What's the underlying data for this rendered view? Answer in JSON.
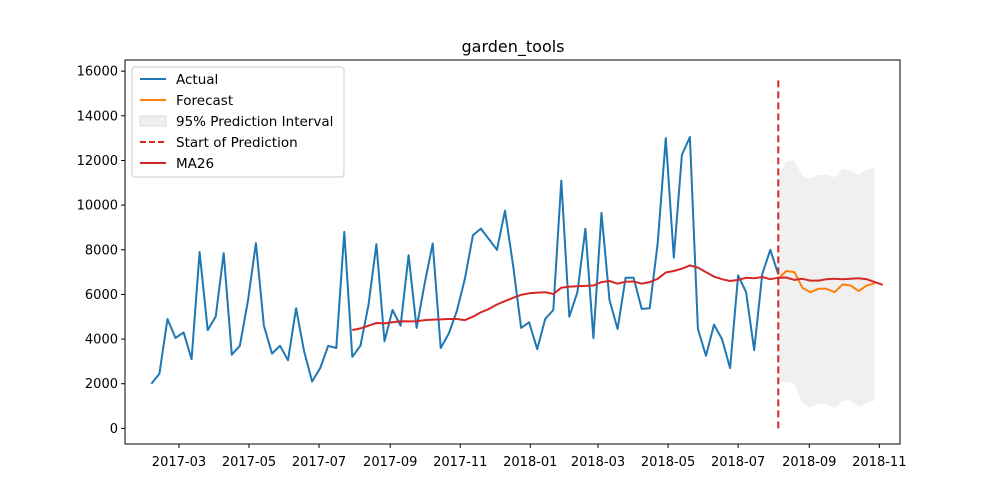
{
  "chart_data": {
    "type": "line",
    "title": "garden_tools",
    "xlabel": "",
    "ylabel": "",
    "x_range": [
      "2017-01-13",
      "2018-11-19"
    ],
    "ylim": [
      -700,
      16500
    ],
    "grid": false,
    "legend_position": "top-left",
    "y_ticks": [
      0,
      2000,
      4000,
      6000,
      8000,
      10000,
      12000,
      14000,
      16000
    ],
    "y_tick_labels": [
      "0",
      "2000",
      "4000",
      "6000",
      "8000",
      "10000",
      "12000",
      "14000",
      "16000"
    ],
    "x_ticks": [
      "2017-03-01",
      "2017-05-01",
      "2017-07-01",
      "2017-09-01",
      "2017-11-01",
      "2018-01-01",
      "2018-03-01",
      "2018-05-01",
      "2018-07-01",
      "2018-09-01",
      "2018-11-01"
    ],
    "x_tick_labels": [
      "2017-03",
      "2017-05",
      "2017-07",
      "2017-09",
      "2017-11",
      "2018-01",
      "2018-03",
      "2018-05",
      "2018-07",
      "2018-09",
      "2018-11"
    ],
    "series": [
      {
        "name": "Actual",
        "kind": "line",
        "color": "#1f77b4",
        "points": [
          [
            "2017-02-05",
            2000
          ],
          [
            "2017-02-12",
            2450
          ],
          [
            "2017-02-19",
            4900
          ],
          [
            "2017-02-26",
            4050
          ],
          [
            "2017-03-05",
            4300
          ],
          [
            "2017-03-12",
            3100
          ],
          [
            "2017-03-19",
            7900
          ],
          [
            "2017-03-26",
            4400
          ],
          [
            "2017-04-02",
            5000
          ],
          [
            "2017-04-09",
            7850
          ],
          [
            "2017-04-16",
            3300
          ],
          [
            "2017-04-23",
            3700
          ],
          [
            "2017-04-30",
            5700
          ],
          [
            "2017-05-07",
            8300
          ],
          [
            "2017-05-14",
            4600
          ],
          [
            "2017-05-21",
            3350
          ],
          [
            "2017-05-28",
            3700
          ],
          [
            "2017-06-04",
            3050
          ],
          [
            "2017-06-11",
            5380
          ],
          [
            "2017-06-18",
            3450
          ],
          [
            "2017-06-25",
            2100
          ],
          [
            "2017-07-02",
            2700
          ],
          [
            "2017-07-09",
            3700
          ],
          [
            "2017-07-16",
            3600
          ],
          [
            "2017-07-23",
            8800
          ],
          [
            "2017-07-30",
            3200
          ],
          [
            "2017-08-06",
            3700
          ],
          [
            "2017-08-13",
            5500
          ],
          [
            "2017-08-20",
            8250
          ],
          [
            "2017-08-27",
            3900
          ],
          [
            "2017-09-03",
            5300
          ],
          [
            "2017-09-10",
            4600
          ],
          [
            "2017-09-17",
            7750
          ],
          [
            "2017-09-24",
            4500
          ],
          [
            "2017-10-01",
            6500
          ],
          [
            "2017-10-08",
            8280
          ],
          [
            "2017-10-15",
            3600
          ],
          [
            "2017-10-22",
            4250
          ],
          [
            "2017-10-29",
            5250
          ],
          [
            "2017-11-05",
            6700
          ],
          [
            "2017-11-12",
            8650
          ],
          [
            "2017-11-19",
            8950
          ],
          [
            "2017-12-03",
            8000
          ],
          [
            "2017-12-10",
            9750
          ],
          [
            "2017-12-17",
            7300
          ],
          [
            "2017-12-24",
            4500
          ],
          [
            "2017-12-31",
            4750
          ],
          [
            "2018-01-07",
            3550
          ],
          [
            "2018-01-14",
            4900
          ],
          [
            "2018-01-21",
            5300
          ],
          [
            "2018-01-28",
            11100
          ],
          [
            "2018-02-04",
            5000
          ],
          [
            "2018-02-11",
            6100
          ],
          [
            "2018-02-18",
            8950
          ],
          [
            "2018-02-25",
            4050
          ],
          [
            "2018-03-04",
            9650
          ],
          [
            "2018-03-11",
            5750
          ],
          [
            "2018-03-18",
            4450
          ],
          [
            "2018-03-25",
            6750
          ],
          [
            "2018-04-01",
            6750
          ],
          [
            "2018-04-08",
            5350
          ],
          [
            "2018-04-15",
            5380
          ],
          [
            "2018-04-22",
            8300
          ],
          [
            "2018-04-29",
            13000
          ],
          [
            "2018-05-06",
            7650
          ],
          [
            "2018-05-13",
            12250
          ],
          [
            "2018-05-20",
            13050
          ],
          [
            "2018-05-27",
            4450
          ],
          [
            "2018-06-03",
            3250
          ],
          [
            "2018-06-10",
            4650
          ],
          [
            "2018-06-17",
            4000
          ],
          [
            "2018-06-24",
            2700
          ],
          [
            "2018-07-01",
            6850
          ],
          [
            "2018-07-08",
            6100
          ],
          [
            "2018-07-15",
            3500
          ],
          [
            "2018-07-22",
            6900
          ],
          [
            "2018-07-29",
            8000
          ],
          [
            "2018-08-05",
            6900
          ]
        ]
      },
      {
        "name": "Forecast",
        "kind": "line",
        "color": "#ff7f0e",
        "points": [
          [
            "2018-08-05",
            6700
          ],
          [
            "2018-08-12",
            7050
          ],
          [
            "2018-08-19",
            7000
          ],
          [
            "2018-08-26",
            6300
          ],
          [
            "2018-09-02",
            6100
          ],
          [
            "2018-09-09",
            6250
          ],
          [
            "2018-09-16",
            6250
          ],
          [
            "2018-09-23",
            6100
          ],
          [
            "2018-09-30",
            6450
          ],
          [
            "2018-10-07",
            6400
          ],
          [
            "2018-10-14",
            6150
          ],
          [
            "2018-10-21",
            6400
          ],
          [
            "2018-10-28",
            6500
          ]
        ]
      },
      {
        "name": "95% Prediction Interval",
        "kind": "band",
        "color": "#f0f0f0",
        "points": [
          [
            "2018-08-05",
            2100,
            11300
          ],
          [
            "2018-08-12",
            2050,
            11950
          ],
          [
            "2018-08-19",
            2000,
            12000
          ],
          [
            "2018-08-26",
            1150,
            11300
          ],
          [
            "2018-09-02",
            950,
            11200
          ],
          [
            "2018-09-09",
            1100,
            11350
          ],
          [
            "2018-09-16",
            1100,
            11350
          ],
          [
            "2018-09-23",
            900,
            11250
          ],
          [
            "2018-09-30",
            1250,
            11600
          ],
          [
            "2018-10-07",
            1250,
            11550
          ],
          [
            "2018-10-14",
            950,
            11350
          ],
          [
            "2018-10-21",
            1150,
            11600
          ],
          [
            "2018-10-28",
            1250,
            11700
          ]
        ]
      },
      {
        "name": "Start of Prediction",
        "kind": "vline",
        "color": "#d62728",
        "x": "2018-08-05",
        "y_range": [
          0,
          15700
        ]
      },
      {
        "name": "MA26",
        "kind": "line",
        "color": "#d62728",
        "points": [
          [
            "2017-07-30",
            4400
          ],
          [
            "2017-08-06",
            4480
          ],
          [
            "2017-08-13",
            4600
          ],
          [
            "2017-08-20",
            4720
          ],
          [
            "2017-08-27",
            4700
          ],
          [
            "2017-09-03",
            4750
          ],
          [
            "2017-09-10",
            4800
          ],
          [
            "2017-09-17",
            4790
          ],
          [
            "2017-09-24",
            4800
          ],
          [
            "2017-10-01",
            4850
          ],
          [
            "2017-10-08",
            4870
          ],
          [
            "2017-10-15",
            4880
          ],
          [
            "2017-10-22",
            4900
          ],
          [
            "2017-10-29",
            4900
          ],
          [
            "2017-11-05",
            4850
          ],
          [
            "2017-11-12",
            5000
          ],
          [
            "2017-11-19",
            5200
          ],
          [
            "2017-11-26",
            5350
          ],
          [
            "2017-12-03",
            5550
          ],
          [
            "2017-12-10",
            5700
          ],
          [
            "2017-12-17",
            5850
          ],
          [
            "2017-12-24",
            5980
          ],
          [
            "2017-12-31",
            6050
          ],
          [
            "2018-01-07",
            6080
          ],
          [
            "2018-01-14",
            6100
          ],
          [
            "2018-01-21",
            6020
          ],
          [
            "2018-01-28",
            6300
          ],
          [
            "2018-02-04",
            6350
          ],
          [
            "2018-02-11",
            6370
          ],
          [
            "2018-02-18",
            6380
          ],
          [
            "2018-02-25",
            6400
          ],
          [
            "2018-03-04",
            6550
          ],
          [
            "2018-03-11",
            6600
          ],
          [
            "2018-03-18",
            6480
          ],
          [
            "2018-03-25",
            6570
          ],
          [
            "2018-04-01",
            6580
          ],
          [
            "2018-04-08",
            6480
          ],
          [
            "2018-04-15",
            6550
          ],
          [
            "2018-04-22",
            6700
          ],
          [
            "2018-04-29",
            6980
          ],
          [
            "2018-05-06",
            7050
          ],
          [
            "2018-05-13",
            7150
          ],
          [
            "2018-05-20",
            7300
          ],
          [
            "2018-05-27",
            7200
          ],
          [
            "2018-06-03",
            7000
          ],
          [
            "2018-06-10",
            6800
          ],
          [
            "2018-06-17",
            6680
          ],
          [
            "2018-06-24",
            6600
          ],
          [
            "2018-07-01",
            6650
          ],
          [
            "2018-07-08",
            6750
          ],
          [
            "2018-07-15",
            6720
          ],
          [
            "2018-07-22",
            6780
          ],
          [
            "2018-07-29",
            6680
          ],
          [
            "2018-08-05",
            6750
          ],
          [
            "2018-08-12",
            6760
          ],
          [
            "2018-08-19",
            6650
          ],
          [
            "2018-08-26",
            6700
          ],
          [
            "2018-09-02",
            6620
          ],
          [
            "2018-09-09",
            6620
          ],
          [
            "2018-09-16",
            6680
          ],
          [
            "2018-09-23",
            6700
          ],
          [
            "2018-09-30",
            6680
          ],
          [
            "2018-10-07",
            6700
          ],
          [
            "2018-10-14",
            6720
          ],
          [
            "2018-10-21",
            6680
          ],
          [
            "2018-10-28",
            6550
          ],
          [
            "2018-11-04",
            6430
          ]
        ]
      }
    ]
  }
}
